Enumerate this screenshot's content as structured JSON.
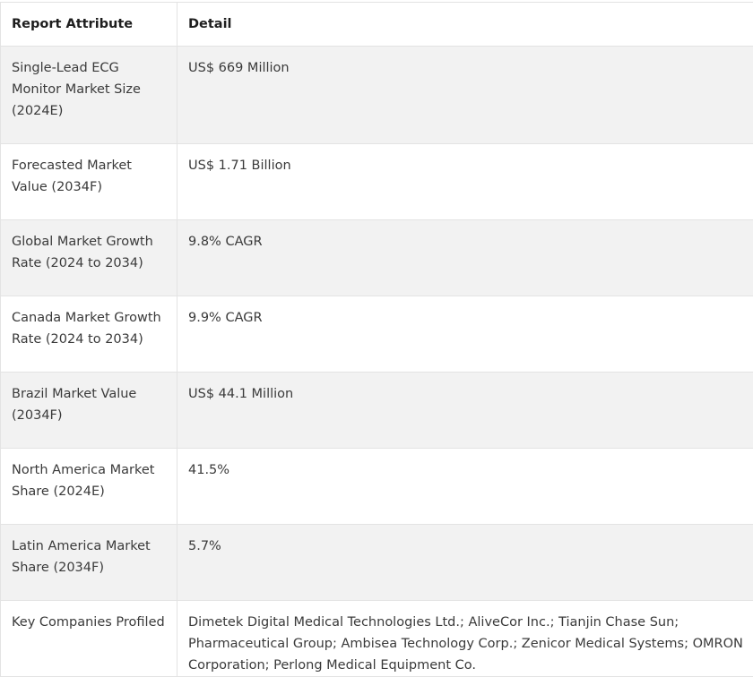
{
  "table": {
    "headers": [
      "Report Attribute",
      "Detail"
    ],
    "rows": [
      {
        "attribute": "Single-Lead ECG Monitor Market Size (2024E)",
        "detail": "US$ 669 Million"
      },
      {
        "attribute": "Forecasted Market Value (2034F)",
        "detail": "US$ 1.71 Billion"
      },
      {
        "attribute": "Global Market Growth Rate (2024 to 2034)",
        "detail": "9.8% CAGR"
      },
      {
        "attribute": "Canada Market Growth Rate (2024 to 2034)",
        "detail": "9.9% CAGR"
      },
      {
        "attribute": "Brazil Market Value (2034F)",
        "detail": "US$ 44.1 Million"
      },
      {
        "attribute": "North America Market Share (2024E)",
        "detail": "41.5%"
      },
      {
        "attribute": "Latin America Market Share (2034F)",
        "detail": "5.7%"
      },
      {
        "attribute": "Key Companies Profiled",
        "detail": "Dimetek Digital Medical Technologies Ltd.; AliveCor Inc.; Tianjin Chase Sun; Pharmaceutical Group; Ambisea Technology Corp.; Zenicor Medical Systems; OMRON Corporation; Perlong Medical Equipment Co."
      }
    ]
  }
}
